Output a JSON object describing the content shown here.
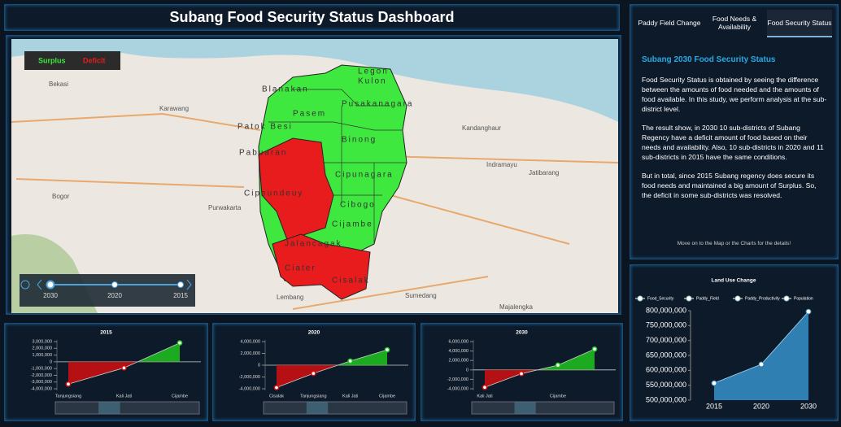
{
  "header": {
    "title": "Subang Food Security Status Dashboard"
  },
  "map": {
    "legend": [
      "Surplus",
      "Deficit"
    ],
    "districts": [
      "Legon",
      "Kulon",
      "Blanakan",
      "Pusakanagara",
      "Pasem",
      "Patok Besi",
      "Binong",
      "Pabuaran",
      "Cipunagara",
      "Cipeundeuy",
      "Cibogo",
      "Cijambe",
      "Jalancagak",
      "Ciater",
      "Cisalak"
    ],
    "places": [
      "Bekasi",
      "Karawang",
      "Purwakarta",
      "Indramayu",
      "Kandanghaur",
      "Jatibarang",
      "Sumedang",
      "Majalengka",
      "Lembang",
      "Bogor"
    ],
    "timeline": [
      "2030",
      "2020",
      "2015"
    ]
  },
  "tabs": [
    "Paddy Field Change",
    "Food Needs & Availability",
    "Food Security Status"
  ],
  "active_tab": 2,
  "status": {
    "heading": "Subang 2030 Food Security Status",
    "paragraphs": [
      "Food Security Status is obtained by seeing the difference between the amounts of food needed and the amounts of food available. In this study, we perform analysis at the sub-district level.",
      "The result show, in 2030 10 sub-districts of Subang Regency have a deficit amount of food based on their needs and availability. Also, 10 sub-districts in 2020 and 11 sub-districts in 2015 have the same conditions.",
      "But in total, since 2015 Subang regency does secure its food needs and maintained a big amount of Surplus. So, the deficit in some sub-districts was resolved."
    ],
    "note": "Move on to the Map or the Charts for the details!"
  },
  "charts": [
    {
      "type": "line",
      "title": "2015",
      "categories": [
        "Tanjungsiang",
        "Kali Jati",
        "Cijambe"
      ],
      "values": [
        -3300000,
        -900000,
        2800000
      ],
      "ylim": [
        -4000000,
        3000000
      ],
      "yticks": [
        {
          "value": 3000000,
          "label": "3,000,000"
        },
        {
          "value": 2000000,
          "label": "2,000,000"
        },
        {
          "value": 1000000,
          "label": "1,000,000"
        },
        0,
        {
          "value": -1000000,
          "label": "-1,000,000"
        },
        {
          "value": -2000000,
          "label": "-2,000,000"
        },
        {
          "value": -3000000,
          "label": "-3,000,000"
        },
        {
          "value": -4000000,
          "label": "-4,000,000"
        }
      ],
      "positive_color": "#1fc41f",
      "negative_color": "#d41010"
    },
    {
      "type": "line",
      "title": "2020",
      "categories": [
        "Cisalak",
        "Tanjungsiang",
        "Kali Jati",
        "Cijambe"
      ],
      "values": [
        -3800000,
        -1400000,
        700000,
        2600000
      ],
      "ylim": [
        -4000000,
        4000000
      ],
      "yticks": [
        {
          "value": 4000000,
          "label": "4,000,000"
        },
        {
          "value": 2000000,
          "label": "2,000,000"
        },
        0,
        {
          "value": -2000000,
          "label": "-2,000,000"
        },
        {
          "value": -4000000,
          "label": "-4,000,000"
        }
      ],
      "positive_color": "#1fc41f",
      "negative_color": "#d41010"
    },
    {
      "type": "line",
      "title": "2030",
      "categories": [
        "Kali Jati",
        null,
        "Cijambe",
        null
      ],
      "values": [
        -3700000,
        -800000,
        1000000,
        4400000
      ],
      "ylim": [
        -4000000,
        6000000
      ],
      "yticks": [
        {
          "value": 6000000,
          "label": "6,000,000"
        },
        {
          "value": 4000000,
          "label": "4,000,000"
        },
        {
          "value": 2000000,
          "label": "2,000,000"
        },
        0,
        {
          "value": -2000000,
          "label": "-2,000,000"
        },
        {
          "value": -4000000,
          "label": "-4,000,000"
        }
      ],
      "positive_color": "#1fc41f",
      "negative_color": "#d41010"
    }
  ],
  "land_use": {
    "type": "area",
    "title": "Land Use Change",
    "legend": [
      "Food_Security",
      "Paddy_Field",
      "Paddy_Productivity",
      "Population"
    ],
    "categories": [
      "2015",
      "2020",
      "2030"
    ],
    "values": [
      557000000,
      620000000,
      797000000
    ],
    "ylim": [
      500000000,
      800000000
    ],
    "yticks": [
      {
        "value": 800000000,
        "label": "800,000,000"
      },
      {
        "value": 750000000,
        "label": "750,000,000"
      },
      {
        "value": 700000000,
        "label": "700,000,000"
      },
      {
        "value": 650000000,
        "label": "650,000,000"
      },
      {
        "value": 600000000,
        "label": "600,000,000"
      },
      {
        "value": 550000000,
        "label": "550,000,000"
      },
      {
        "value": 500000000,
        "label": "500,000,000"
      }
    ],
    "color": "#2f7fb3"
  }
}
